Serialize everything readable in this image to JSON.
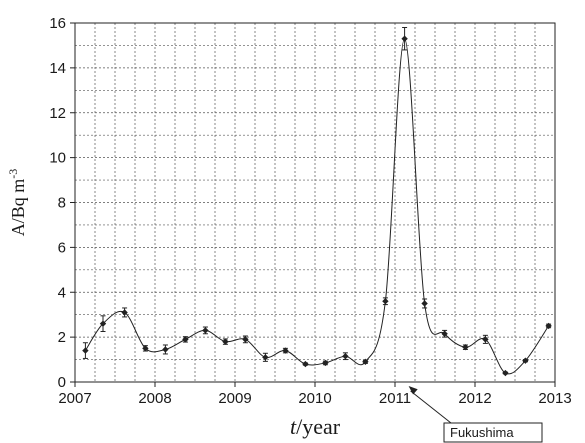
{
  "chart_data": {
    "type": "line",
    "xlabel_italic": "t",
    "xlabel_rest": "/year",
    "ylabel_main": "A/Bq m",
    "ylabel_sup": "-3",
    "xlim": [
      2007,
      2013
    ],
    "ylim": [
      0,
      16
    ],
    "xticks": [
      "2007",
      "2008",
      "2009",
      "2010",
      "2011",
      "2012",
      "2013"
    ],
    "yticks": [
      "0",
      "2",
      "4",
      "6",
      "8",
      "10",
      "12",
      "14",
      "16"
    ],
    "grid": true,
    "annotation": "Fukushima",
    "series": [
      {
        "points": [
          {
            "x": 2007.13,
            "y": 1.4,
            "err": 0.35
          },
          {
            "x": 2007.35,
            "y": 2.6,
            "err": 0.35
          },
          {
            "x": 2007.62,
            "y": 3.1,
            "err": 0.2
          },
          {
            "x": 2007.88,
            "y": 1.5,
            "err": 0.12
          },
          {
            "x": 2008.13,
            "y": 1.45,
            "err": 0.2
          },
          {
            "x": 2008.38,
            "y": 1.9,
            "err": 0.12
          },
          {
            "x": 2008.63,
            "y": 2.3,
            "err": 0.15
          },
          {
            "x": 2008.88,
            "y": 1.8,
            "err": 0.12
          },
          {
            "x": 2009.13,
            "y": 1.9,
            "err": 0.15
          },
          {
            "x": 2009.38,
            "y": 1.1,
            "err": 0.18
          },
          {
            "x": 2009.63,
            "y": 1.4,
            "err": 0.1
          },
          {
            "x": 2009.88,
            "y": 0.8,
            "err": 0.05
          },
          {
            "x": 2010.13,
            "y": 0.85,
            "err": 0.08
          },
          {
            "x": 2010.38,
            "y": 1.15,
            "err": 0.15
          },
          {
            "x": 2010.63,
            "y": 0.9,
            "err": 0.07
          },
          {
            "x": 2010.88,
            "y": 3.6,
            "err": 0.15
          },
          {
            "x": 2011.12,
            "y": 15.3,
            "err": 0.5
          },
          {
            "x": 2011.37,
            "y": 3.5,
            "err": 0.2
          },
          {
            "x": 2011.62,
            "y": 2.15,
            "err": 0.15
          },
          {
            "x": 2011.88,
            "y": 1.55,
            "err": 0.1
          },
          {
            "x": 2012.13,
            "y": 1.9,
            "err": 0.18
          },
          {
            "x": 2012.38,
            "y": 0.4,
            "err": 0.04
          },
          {
            "x": 2012.63,
            "y": 0.95,
            "err": 0.05
          },
          {
            "x": 2012.92,
            "y": 2.5,
            "err": 0.08
          }
        ]
      }
    ],
    "annotation_target_x": 2011.12
  }
}
